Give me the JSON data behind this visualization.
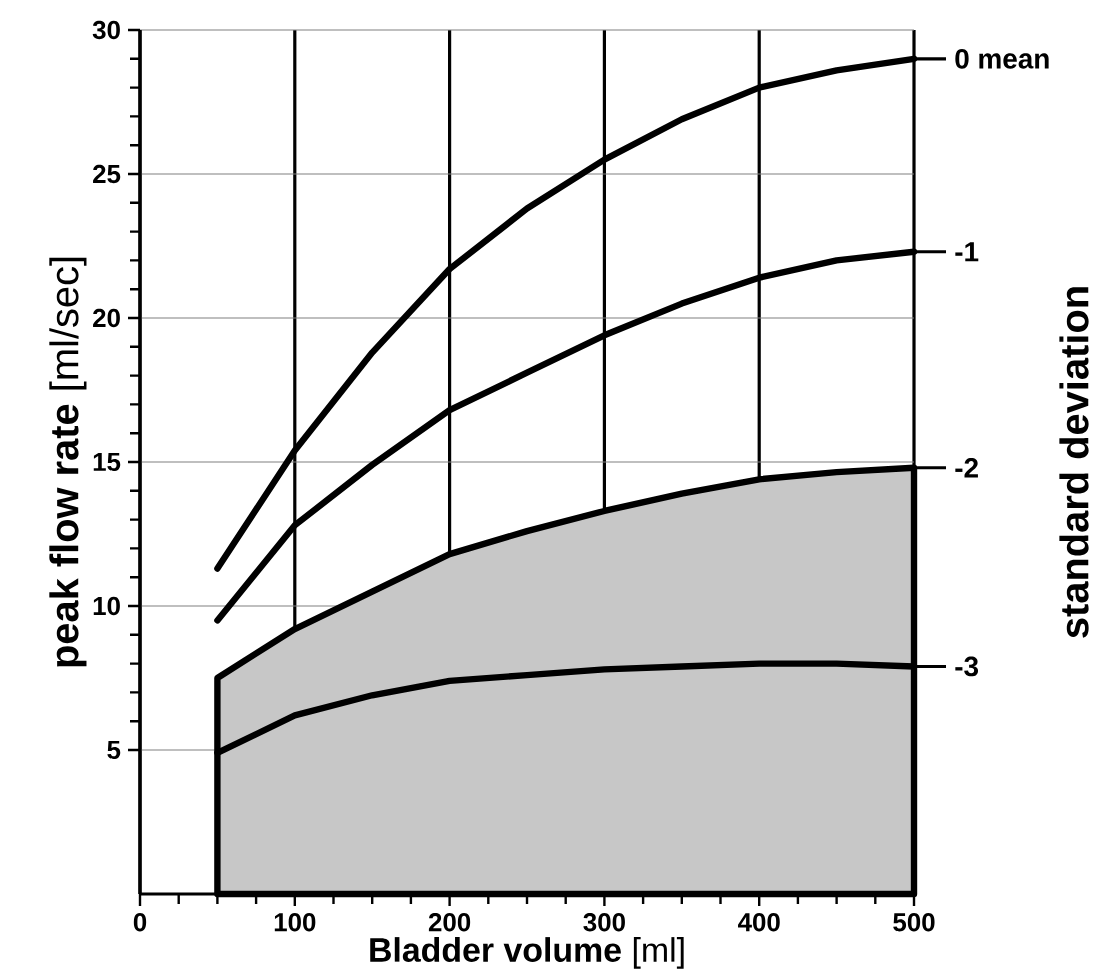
{
  "chart_data": {
    "type": "line",
    "xlabel": "**Bladder volume** [ml]",
    "ylabel": "**peak flow rate** [ml/sec]",
    "y2label": "standard deviation",
    "x": [
      50,
      100,
      150,
      200,
      250,
      300,
      350,
      400,
      450,
      500
    ],
    "series": [
      {
        "name": "0 mean",
        "color": "#000000",
        "values": [
          11.3,
          15.4,
          18.8,
          21.7,
          23.8,
          25.5,
          26.9,
          28.0,
          28.6,
          29.0
        ]
      },
      {
        "name": "-1",
        "color": "#000000",
        "values": [
          9.5,
          12.8,
          14.9,
          16.8,
          18.1,
          19.4,
          20.5,
          21.4,
          22.0,
          22.3
        ]
      },
      {
        "name": "-2",
        "type": "area",
        "color": "#000000",
        "values": [
          7.5,
          9.2,
          10.5,
          11.8,
          12.6,
          13.3,
          13.9,
          14.4,
          14.65,
          14.8
        ]
      },
      {
        "name": "-3",
        "color": "#000000",
        "values": [
          4.9,
          6.2,
          6.9,
          7.4,
          7.6,
          7.8,
          7.9,
          8.0,
          8.0,
          7.9
        ]
      }
    ],
    "xlim": [
      0,
      500
    ],
    "ylim": [
      0,
      30
    ],
    "xticks": [
      0,
      100,
      200,
      300,
      400,
      500
    ],
    "yticks": [
      5,
      10,
      15,
      20,
      25,
      30
    ],
    "grid": true,
    "line_style": "solid",
    "legend": "right"
  }
}
